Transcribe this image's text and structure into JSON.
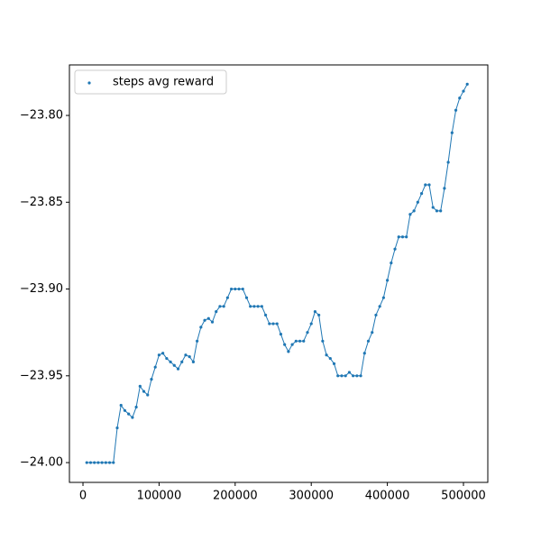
{
  "chart_data": {
    "type": "scatter",
    "connect": true,
    "legend": "upper left",
    "series": [
      {
        "name": "steps avg reward",
        "color": "#1f77b4",
        "x": [
          5000,
          10000,
          15000,
          20000,
          25000,
          30000,
          35000,
          40000,
          45000,
          50000,
          55000,
          60000,
          65000,
          70000,
          75000,
          80000,
          85000,
          90000,
          95000,
          100000,
          105000,
          110000,
          115000,
          120000,
          125000,
          130000,
          135000,
          140000,
          145000,
          150000,
          155000,
          160000,
          165000,
          170000,
          175000,
          180000,
          185000,
          190000,
          195000,
          200000,
          205000,
          210000,
          215000,
          220000,
          225000,
          230000,
          235000,
          240000,
          245000,
          250000,
          255000,
          260000,
          265000,
          270000,
          275000,
          280000,
          285000,
          290000,
          295000,
          300000,
          305000,
          310000,
          315000,
          320000,
          325000,
          330000,
          335000,
          340000,
          345000,
          350000,
          355000,
          360000,
          365000,
          370000,
          375000,
          380000,
          385000,
          390000,
          395000,
          400000,
          405000,
          410000,
          415000,
          420000,
          425000,
          430000,
          435000,
          440000,
          445000,
          450000,
          455000,
          460000,
          465000,
          470000,
          475000,
          480000,
          485000,
          490000,
          495000,
          500000,
          505000
        ],
        "values": [
          -24.0,
          -24.0,
          -24.0,
          -24.0,
          -24.0,
          -24.0,
          -24.0,
          -24.0,
          -23.98,
          -23.967,
          -23.97,
          -23.972,
          -23.974,
          -23.968,
          -23.956,
          -23.959,
          -23.961,
          -23.952,
          -23.945,
          -23.938,
          -23.937,
          -23.94,
          -23.942,
          -23.944,
          -23.946,
          -23.942,
          -23.938,
          -23.939,
          -23.942,
          -23.93,
          -23.922,
          -23.918,
          -23.917,
          -23.919,
          -23.913,
          -23.91,
          -23.91,
          -23.905,
          -23.9,
          -23.9,
          -23.9,
          -23.9,
          -23.905,
          -23.91,
          -23.91,
          -23.91,
          -23.91,
          -23.915,
          -23.92,
          -23.92,
          -23.92,
          -23.926,
          -23.932,
          -23.936,
          -23.932,
          -23.93,
          -23.93,
          -23.93,
          -23.925,
          -23.92,
          -23.913,
          -23.915,
          -23.93,
          -23.938,
          -23.94,
          -23.943,
          -23.95,
          -23.95,
          -23.95,
          -23.948,
          -23.95,
          -23.95,
          -23.95,
          -23.937,
          -23.93,
          -23.925,
          -23.915,
          -23.91,
          -23.905,
          -23.895,
          -23.885,
          -23.877,
          -23.87,
          -23.87,
          -23.87,
          -23.857,
          -23.855,
          -23.85,
          -23.845,
          -23.84,
          -23.84,
          -23.853,
          -23.855,
          -23.855,
          -23.842,
          -23.827,
          -23.81,
          -23.797,
          -23.79,
          -23.786,
          -23.782
        ]
      }
    ],
    "xlim": [
      -17800,
      532000
    ],
    "xticks": [
      0,
      100000,
      200000,
      300000,
      400000,
      500000
    ],
    "ylim": [
      -24.0114,
      -23.7709
    ],
    "yticks": [
      {
        "value": -24.0,
        "label": "−24.00"
      },
      {
        "value": -23.95,
        "label": "−23.95"
      },
      {
        "value": -23.9,
        "label": "−23.90"
      },
      {
        "value": -23.85,
        "label": "−23.85"
      },
      {
        "value": -23.8,
        "label": "−23.80"
      }
    ]
  }
}
